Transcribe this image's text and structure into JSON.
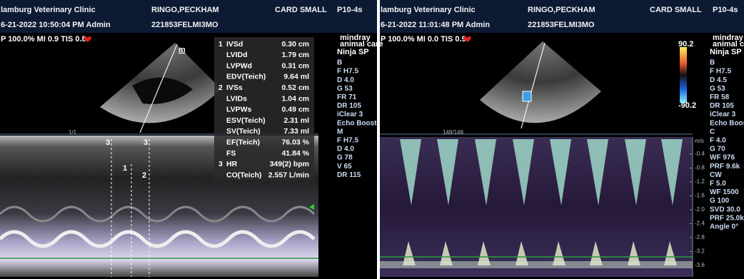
{
  "panels": [
    {
      "header": {
        "clinic": "lamburg Veterinary Clinic",
        "patient": "RINGO,PECKHAM",
        "preset": "CARD SMALL",
        "probe": "P10-4s",
        "datetime": "6-21-2022  10:50:04 PM  Admin",
        "id": "221853FELMI3MO"
      },
      "status": "P 100.0% MI 0.9 TIS 0.8",
      "brand": {
        "logo": "mindray",
        "sub": "animal care",
        "model": "Ninja SP"
      },
      "settings": [
        "B",
        "F H7.5",
        "D 4.0",
        "G 53",
        "FR 71",
        "DR 105",
        "iClear 3",
        "Echo Boost",
        "M",
        "F H7.5",
        "D 4.0",
        "G 78",
        "V 65",
        "DR 115"
      ],
      "measurements": [
        {
          "num": "1",
          "label": "IVSd",
          "value": "0.30 cm"
        },
        {
          "label": "LVIDd",
          "value": "1.79 cm"
        },
        {
          "label": "LVPWd",
          "value": "0.31 cm"
        },
        {
          "label": "EDV(Teich)",
          "value": "9.64 ml"
        },
        {
          "num": "2",
          "label": "IVSs",
          "value": "0.52 cm"
        },
        {
          "label": "LVIDs",
          "value": "1.04 cm"
        },
        {
          "label": "LVPWs",
          "value": "0.49 cm"
        },
        {
          "label": "ESV(Teich)",
          "value": "2.31 ml"
        },
        {
          "label": "SV(Teich)",
          "value": "7.33 ml"
        },
        {
          "label": "EF(Teich)",
          "value": "76.03 %"
        },
        {
          "label": "FS",
          "value": "41.84 %"
        },
        {
          "num": "3",
          "label": "HR",
          "value": "349(2) bpm"
        },
        {
          "label": "CO(Teich)",
          "value": "2.557 L/min"
        }
      ],
      "markers": {
        "sector": "m",
        "frame": "1/1",
        "cursor_a": "3",
        "cursor_b": "3",
        "caliper_1": "1",
        "caliper_2": "2"
      }
    },
    {
      "header": {
        "clinic": "lamburg Veterinary Clinic",
        "patient": "RINGO,PECKHAM",
        "preset": "CARD SMALL",
        "probe": "P10-4s",
        "datetime": "6-21-2022  11:01:48 PM  Admin",
        "id": "221853FELMI3MO"
      },
      "status": "P 100.0% MI 0.0 TIS 0.9",
      "brand": {
        "logo": "mindray",
        "sub": "animal care",
        "model": "Ninja SP"
      },
      "settings": [
        "B",
        "F H7.5",
        "D 4.5",
        "G 53",
        "FR 58",
        "DR 105",
        "iClear 3",
        "Echo Boost",
        "C",
        "F 4.0",
        "G 70",
        "WF 976",
        "PRF 9.6k",
        "CW",
        "F 5.0",
        "WF 1500",
        "G 100",
        "SVD 30.0",
        "PRF 25.0k",
        "Angle 0°"
      ],
      "colorbar": {
        "max": "90.2",
        "min": "-90.2"
      },
      "velocity_scale": {
        "unit": "m/s",
        "ticks": [
          "-0.4",
          "-0.8",
          "-1.2",
          "-1.6",
          "-2.0",
          "-2.4",
          "-2.8",
          "-3.2",
          "-3.6"
        ]
      },
      "markers": {
        "sector": "m",
        "frame": "148/148"
      }
    }
  ]
}
